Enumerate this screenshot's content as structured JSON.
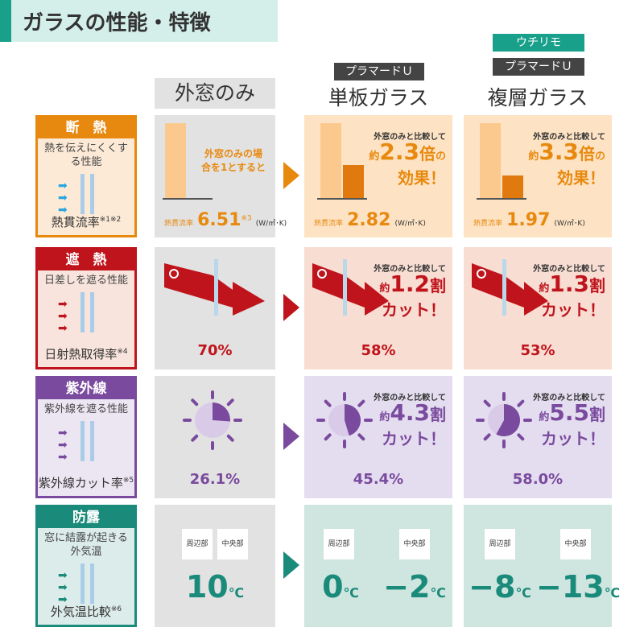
{
  "title": "ガラスの性能・特徴",
  "columns": {
    "c1": {
      "title": "外窓のみ"
    },
    "c2": {
      "tag": "プラマードＵ",
      "title": "単板ガラス"
    },
    "c3": {
      "tag_top": "ウチリモ",
      "tag": "プラマードＵ",
      "title": "複層ガラス"
    }
  },
  "colors": {
    "orange": "#e8890f",
    "red": "#c0141c",
    "purple": "#7a4a9e",
    "teal": "#1a8a7a"
  },
  "compare": "外窓のみと比較して",
  "about": "約",
  "rows": {
    "heat": {
      "title": "断　熱",
      "desc": "熱を伝えにくくする性能",
      "footer": "熱貫流率",
      "note": "※1※2",
      "c1_note": "外窓のみの場合を1とすると",
      "metric": "熱貫流率",
      "unit": "(W/㎡･K)",
      "note3": "※3",
      "c1": "6.51",
      "c2": "2.82",
      "c3": "1.97",
      "c2_eff": "2.3",
      "c3_eff": "3.3",
      "eff_unit": "倍",
      "eff_suffix": "の",
      "eff_line2": "効果！"
    },
    "shade": {
      "title": "遮　熱",
      "desc": "日差しを遮る性能",
      "footer": "日射熱取得率",
      "note": "※4",
      "c1": "70%",
      "c2": "58%",
      "c3": "53%",
      "c2_eff": "1.2",
      "c3_eff": "1.3",
      "eff_unit": "割",
      "eff_line2": "カット！"
    },
    "uv": {
      "title": "紫外線",
      "desc": "紫外線を遮る性能",
      "footer": "紫外線カット率",
      "note": "※5",
      "c1": "26.1%",
      "c2": "45.4%",
      "c3": "58.0%",
      "c2_eff": "4.3",
      "c3_eff": "5.5",
      "eff_unit": "割",
      "eff_line2": "カット！",
      "fill": [
        0.261,
        0.454,
        0.58
      ]
    },
    "dew": {
      "title": "防露",
      "desc": "窓に結露が起きる外気温",
      "footer": "外気温比較",
      "note": "※6",
      "edge": "周辺部",
      "center": "中央部",
      "c1": "10",
      "c2a": "0",
      "c2b": "−2",
      "c3a": "−8",
      "c3b": "−13",
      "unit": "℃"
    }
  }
}
